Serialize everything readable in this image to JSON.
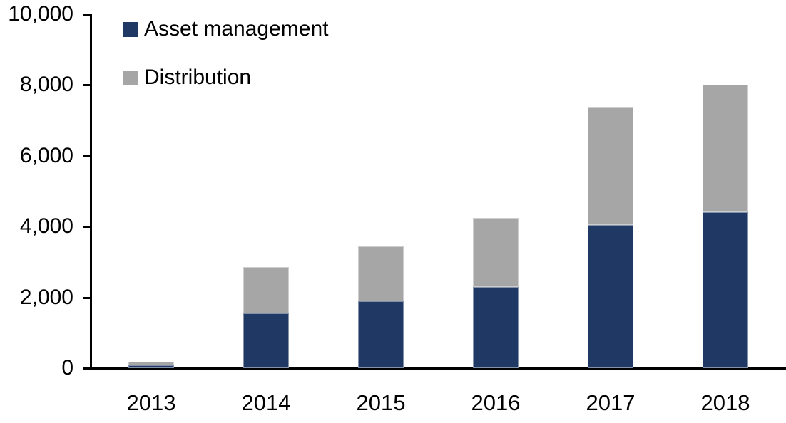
{
  "chart_data": {
    "type": "bar",
    "stacked": true,
    "title": "",
    "xlabel": "",
    "ylabel": "",
    "categories": [
      "2013",
      "2014",
      "2015",
      "2016",
      "2017",
      "2018"
    ],
    "series": [
      {
        "name": "Asset management",
        "color": "#1f3864",
        "values": [
          80,
          1550,
          1900,
          2300,
          4050,
          4400
        ]
      },
      {
        "name": "Distribution",
        "color": "#a6a6a6",
        "values": [
          100,
          1300,
          1550,
          1950,
          3350,
          3600
        ]
      }
    ],
    "totals": [
      180,
      2850,
      3450,
      4250,
      7400,
      8000
    ],
    "ylim": [
      0,
      10000
    ],
    "ytick_values": [
      0,
      2000,
      4000,
      6000,
      8000,
      10000
    ],
    "ytick_labels": [
      "0",
      "2,000",
      "4,000",
      "6,000",
      "8,000",
      "10,000"
    ],
    "legend_position": "top-left",
    "grid": false,
    "axis_color": "#000000",
    "text_color": "#000000",
    "background_color": "#ffffff"
  }
}
